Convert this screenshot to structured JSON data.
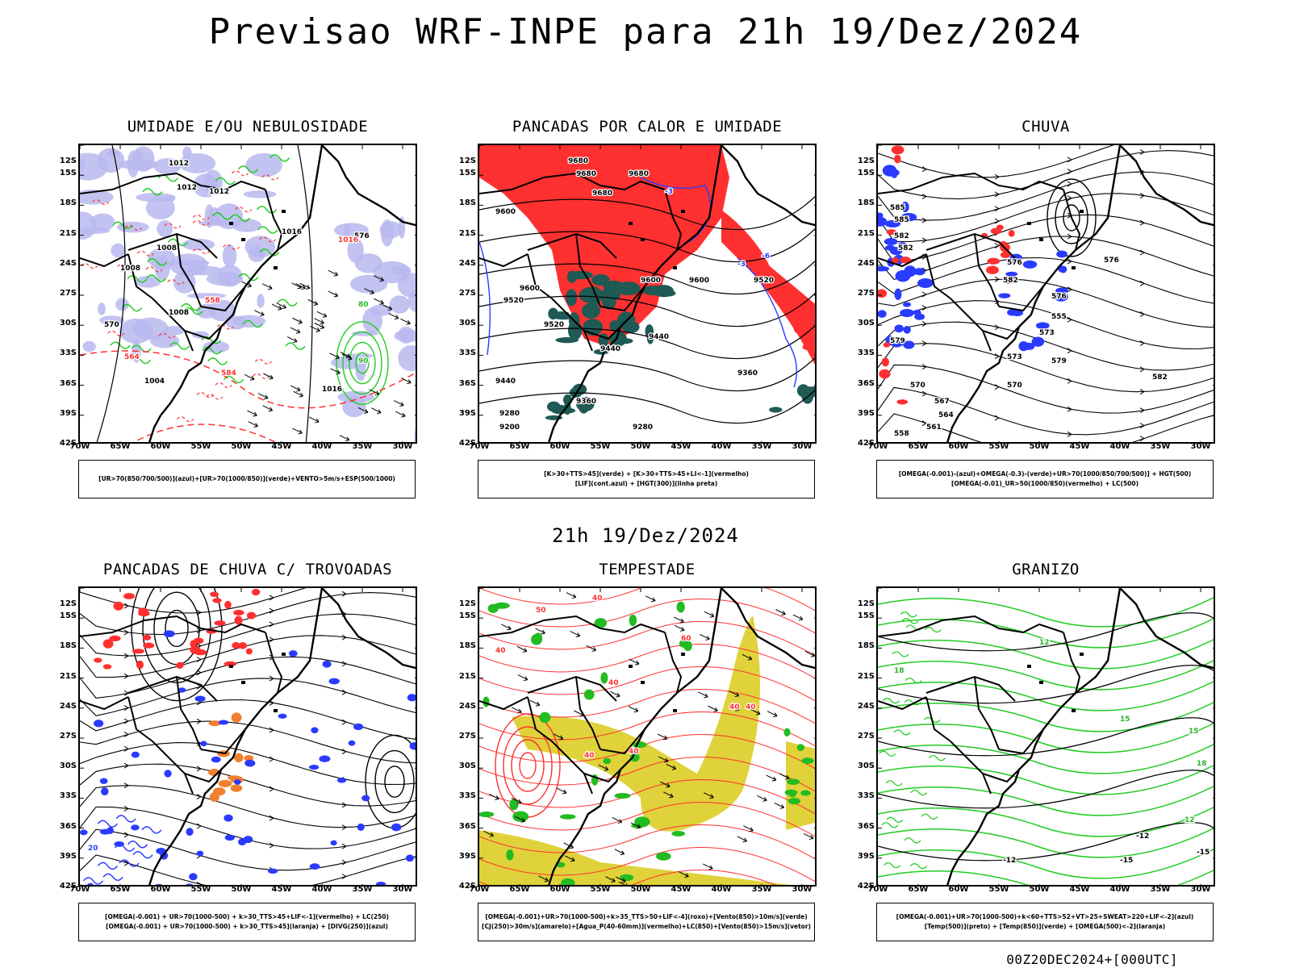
{
  "main_title": "Previsao WRF-INPE  para 21h 19/Dez/2024",
  "center_date": "21h 19/Dez/2024",
  "footer": "00Z20DEC2024+[000UTC]",
  "axes": {
    "lat_labels": [
      "12S",
      "15S",
      "18S",
      "21S",
      "24S",
      "27S",
      "30S",
      "33S",
      "36S",
      "39S",
      "42S"
    ],
    "lon_labels": [
      "70W",
      "65W",
      "60W",
      "55W",
      "50W",
      "45W",
      "40W",
      "35W",
      "30W"
    ]
  },
  "panels": [
    {
      "id": "umidade",
      "title": "UMIDADE E/OU NEBULOSIDADE",
      "legend": [
        "[UR>70(850/700/500)](azul)+[UR>70(1000/850)](verde)+VENTO>5m/s+ESP(500/1000)"
      ],
      "contour_labels": [
        "1012",
        "1012",
        "1012",
        "1008",
        "1008",
        "1016",
        "1016",
        "1004",
        "1008",
        "576",
        "570",
        "564",
        "558",
        "584",
        "1016",
        "80",
        "90"
      ]
    },
    {
      "id": "pancadas-calor",
      "title": "PANCADAS POR CALOR E UMIDADE",
      "legend": [
        "[K>30+TTS>45](verde) + [K>30+TTS>45+LI<-1](vermelho)",
        "[LIF](cont.azul) + [HGT(300)](linha preta)"
      ],
      "contour_labels": [
        "9680",
        "9680",
        "9680",
        "9680",
        "9600",
        "9600",
        "9600",
        "9600",
        "9520",
        "9520",
        "9520",
        "9440",
        "9440",
        "9440",
        "9360",
        "9360",
        "9280",
        "9280",
        "9200",
        "-3",
        "-3",
        "-6"
      ]
    },
    {
      "id": "chuva",
      "title": "CHUVA",
      "legend": [
        "[OMEGA(-0.001)-(azul)+OMEGA(-0.3)-(verde)+UR>70(1000/850/700/500)] + HGT(500)",
        "[OMEGA(-0.01)_UR>50(1000/850)(vermelho) + LC(500)"
      ],
      "contour_labels": [
        "585",
        "582",
        "585",
        "582",
        "579",
        "576",
        "582",
        "576",
        "573",
        "573",
        "570",
        "570",
        "567",
        "564",
        "561",
        "558",
        "555",
        "582",
        "576",
        "579"
      ]
    },
    {
      "id": "trovoadas",
      "title": "PANCADAS DE CHUVA C/ TROVOADAS",
      "legend": [
        "[OMEGA(-0.001) + UR>70(1000-500) + k>30_TTS>45+LIF<-1](vermelho) + LC(250)",
        "[OMEGA(-0.001) + UR>70(1000-500) + k>30_TTS>45](laranja) + [DIVG(250)](azul)"
      ],
      "contour_labels": [
        "20"
      ]
    },
    {
      "id": "tempestade",
      "title": "TEMPESTADE",
      "legend": [
        "[OMEGA(-0.001)+UR>70(1000-500)+k>35_TTS>50+LIF<-4](roxo)+[Vento(850)>10m/s](verde)",
        "[CJ(250)>30m/s](amarelo)+[Agua_P(40-60mm)](vermelho)+LC(850)+[Vento(850)>15m/s](vetor)"
      ],
      "contour_labels": [
        "40",
        "40",
        "40",
        "50",
        "40",
        "40",
        "40",
        "40",
        "60"
      ]
    },
    {
      "id": "granizo",
      "title": "GRANIZO",
      "legend": [
        "[OMEGA(-0.001)+UR>70(1000-500)+k<60+TTS>52+VT>25+SWEAT>220+LIF<-2](azul)",
        "[Temp(500)](preto) + [Temp(850)](verde) + [OMEGA(500)<-2](laranja)"
      ],
      "contour_labels": [
        "18",
        "15",
        "12",
        "-12",
        "-12",
        "-15",
        "-15",
        "12",
        "15",
        "18"
      ]
    }
  ],
  "colors": {
    "coast": "#000000",
    "green": "#22cc22",
    "red": "#ff3030",
    "blue": "#2a3bff",
    "lavender": "#b8b8f0",
    "darkteal": "#1f5a55",
    "yellow": "#e0d23a",
    "orange": "#f08030"
  }
}
